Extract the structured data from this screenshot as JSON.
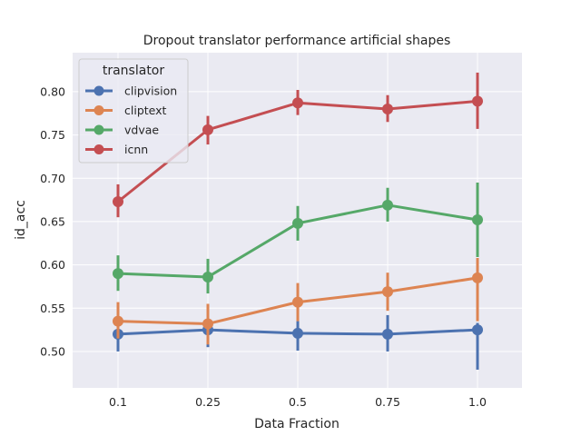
{
  "chart_data": {
    "type": "line",
    "title": "Dropout translator performance artificial shapes",
    "xlabel": "Data Fraction",
    "ylabel": "id_acc",
    "categories": [
      "0.1",
      "0.25",
      "0.5",
      "0.75",
      "1.0"
    ],
    "yticks": [
      "0.50",
      "0.55",
      "0.60",
      "0.65",
      "0.70",
      "0.75",
      "0.80"
    ],
    "ylim": [
      0.458,
      0.845
    ],
    "grid": true,
    "legend": {
      "title": "translator",
      "placement": "top-left"
    },
    "series": [
      {
        "name": "clipvision",
        "color": "#4c72b0",
        "values": [
          0.52,
          0.525,
          0.521,
          0.52,
          0.525
        ],
        "err_low": [
          0.5,
          0.505,
          0.501,
          0.5,
          0.479
        ],
        "err_high": [
          0.537,
          0.543,
          0.535,
          0.542,
          0.533
        ]
      },
      {
        "name": "cliptext",
        "color": "#dd8452",
        "values": [
          0.535,
          0.532,
          0.557,
          0.569,
          0.585
        ],
        "err_low": [
          0.515,
          0.508,
          0.535,
          0.547,
          0.535
        ],
        "err_high": [
          0.557,
          0.555,
          0.579,
          0.591,
          0.608
        ]
      },
      {
        "name": "vdvae",
        "color": "#55a868",
        "values": [
          0.59,
          0.586,
          0.648,
          0.669,
          0.652
        ],
        "err_low": [
          0.57,
          0.567,
          0.628,
          0.65,
          0.609
        ],
        "err_high": [
          0.611,
          0.607,
          0.668,
          0.689,
          0.695
        ]
      },
      {
        "name": "icnn",
        "color": "#c44e52",
        "values": [
          0.673,
          0.756,
          0.787,
          0.78,
          0.789
        ],
        "err_low": [
          0.655,
          0.739,
          0.773,
          0.765,
          0.757
        ],
        "err_high": [
          0.693,
          0.772,
          0.802,
          0.796,
          0.822
        ]
      }
    ]
  }
}
